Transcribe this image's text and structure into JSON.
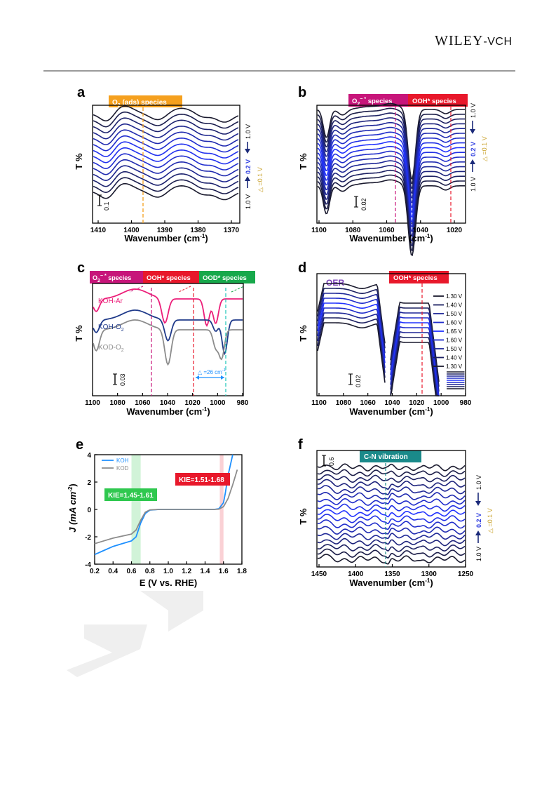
{
  "header": {
    "publisher_main": "WILEY",
    "publisher_suffix": "-VCH"
  },
  "panels": {
    "a": {
      "letter": "a",
      "ylabel": "T %",
      "xlabel": "Wavenumber (cm",
      "xlabel_sup": "-1",
      "xlabel_close": ")",
      "xticks": [
        "1410",
        "1400",
        "1390",
        "1380",
        "1370"
      ],
      "tag": {
        "text": "O",
        "sub": "2",
        "rest": " (ads) species",
        "color": "#f5a01e"
      },
      "scale_label": "0.1",
      "right": {
        "top": "1.0 V",
        "mid": "0.2 V",
        "bottom": "1.0 V",
        "step": "△ =0.1 V"
      }
    },
    "b": {
      "letter": "b",
      "ylabel": "T %",
      "xlabel": "Wavenumber (cm",
      "xlabel_sup": "-1",
      "xlabel_close": ")",
      "xticks": [
        "1100",
        "1080",
        "1060",
        "1040",
        "1020"
      ],
      "tag1": {
        "text": "O",
        "sub": "2",
        "sup": "− *",
        "rest": " species",
        "color": "#c7157a"
      },
      "tag2": {
        "text": "OOH* species",
        "color": "#e8182b"
      },
      "scale_label": "0.02",
      "right": {
        "top": "1.0 V",
        "mid": "0.2 V",
        "bottom": "1.0 V",
        "step": "△ =0.1 V"
      }
    },
    "c": {
      "letter": "c",
      "ylabel": "T %",
      "xlabel": "Wavenumber (cm",
      "xlabel_sup": "-1",
      "xlabel_close": ")",
      "xticks": [
        "1100",
        "1080",
        "1060",
        "1040",
        "1020",
        "1000",
        "980"
      ],
      "tag1": {
        "text": "O",
        "sub": "2",
        "sup": "− *",
        "rest": " species",
        "color": "#c7157a"
      },
      "tag2": {
        "text": "OOH* species",
        "color": "#e8182b"
      },
      "tag3": {
        "text": "OOD* species",
        "color": "#17a84b"
      },
      "label_ar": "KOH-Ar",
      "label_o2": "KOH-O",
      "label_o2_sub": "2",
      "label_kod": "KOD-O",
      "label_kod_sub": "2",
      "shift": "△ =26 cm",
      "shift_sup": "-1",
      "scale_label": "0.03"
    },
    "d": {
      "letter": "d",
      "ylabel": "T %",
      "xlabel": "Wavenumber (cm",
      "xlabel_sup": "-1",
      "xlabel_close": ")",
      "xticks": [
        "1100",
        "1080",
        "1060",
        "1040",
        "1020",
        "1000",
        "980"
      ],
      "oer": "OER",
      "tag": {
        "text": "OOH* species",
        "color": "#e8182b"
      },
      "legend": [
        "1.30 V",
        "1.40 V",
        "1.50 V",
        "1.60 V",
        "1.65 V",
        "1.60 V",
        "1.50 V",
        "1.40 V",
        "1.30 V"
      ],
      "scale_label": "0.02"
    },
    "e": {
      "letter": "e",
      "ylabel": "J (mA cm",
      "ylabel_sup": "-2",
      "ylabel_close": ")",
      "xlabel": "E (V vs. RHE)",
      "xticks": [
        "0.2",
        "0.4",
        "0.6",
        "0.8",
        "1.0",
        "1.2",
        "1.4",
        "1.6",
        "1.8"
      ],
      "yticks": [
        "4",
        "2",
        "0",
        "-2",
        "-4"
      ],
      "legend": [
        {
          "name": "KOH",
          "color": "#1e90ff"
        },
        {
          "name": "KOD",
          "color": "#8c8c8c"
        }
      ],
      "kie_low": {
        "text": "KIE=1.45-1.61",
        "color": "#2fc84f"
      },
      "kie_high": {
        "text": "KIE=1.51-1.68",
        "color": "#e8182b"
      }
    },
    "f": {
      "letter": "f",
      "ylabel": "T %",
      "xlabel": "Wavenumber (cm",
      "xlabel_sup": "-1",
      "xlabel_close": ")",
      "xticks": [
        "1450",
        "1400",
        "1350",
        "1300",
        "1250"
      ],
      "tag": {
        "text": "C-N vibration",
        "color": "#1a8a8a"
      },
      "scale_label": "0.6",
      "right": {
        "top": "1.0 V",
        "mid": "0.2 V",
        "bottom": "1.0 V",
        "step": "△ =0.1 V"
      }
    }
  },
  "chart_data": [
    {
      "type": "line",
      "panel": "a",
      "ylabel": "T %",
      "xlabel": "Wavenumber (cm-1)",
      "xlim": [
        1415,
        1370
      ],
      "x_reversed": true,
      "markers": [
        {
          "x": 1399,
          "label": "O2 (ads) species"
        }
      ],
      "series_count": 14,
      "note_scale": "0.1"
    },
    {
      "type": "line",
      "panel": "b",
      "ylabel": "T %",
      "xlabel": "Wavenumber (cm-1)",
      "xlim": [
        1100,
        1010
      ],
      "x_reversed": true,
      "markers": [
        {
          "x": 1047,
          "label": "O2−* species"
        },
        {
          "x": 1018,
          "label": "OOH* species"
        }
      ],
      "series_count": 17,
      "note_scale": "0.02"
    },
    {
      "type": "line",
      "panel": "c",
      "ylabel": "T %",
      "xlabel": "Wavenumber (cm-1)",
      "xlim": [
        1100,
        975
      ],
      "x_reversed": true,
      "markers": [
        {
          "x": 1053,
          "label": "O2−* species"
        },
        {
          "x": 1018,
          "label": "OOH* species"
        },
        {
          "x": 992,
          "label": "OOD* species"
        }
      ],
      "series": [
        {
          "name": "KOH-Ar",
          "color": "#ec1e79"
        },
        {
          "name": "KOH-O2",
          "color": "#1f3a8a"
        },
        {
          "name": "KOD-O2",
          "color": "#8c8c8c"
        }
      ],
      "annotation": "△ =26 cm-1"
    },
    {
      "type": "line",
      "panel": "d",
      "ylabel": "T %",
      "xlabel": "Wavenumber (cm-1)",
      "xlim": [
        1100,
        980
      ],
      "x_reversed": true,
      "markers": [
        {
          "x": 1017,
          "label": "OOH* species"
        }
      ],
      "series": [
        {
          "name": "1.30 V"
        },
        {
          "name": "1.40 V"
        },
        {
          "name": "1.50 V"
        },
        {
          "name": "1.60 V"
        },
        {
          "name": "1.65 V"
        },
        {
          "name": "1.60 V"
        },
        {
          "name": "1.50 V"
        },
        {
          "name": "1.40 V"
        },
        {
          "name": "1.30 V"
        }
      ]
    },
    {
      "type": "line",
      "panel": "e",
      "xlabel": "E (V vs. RHE)",
      "ylabel": "J (mA cm-2)",
      "xlim": [
        0.2,
        1.8
      ],
      "ylim": [
        -4,
        4
      ],
      "series": [
        {
          "name": "KOH",
          "x": [
            0.2,
            0.3,
            0.4,
            0.5,
            0.6,
            0.65,
            0.7,
            0.75,
            0.8,
            0.9,
            1.0,
            1.2,
            1.4,
            1.5,
            1.55,
            1.6,
            1.62,
            1.65,
            1.7
          ],
          "y": [
            -3.3,
            -3.0,
            -2.7,
            -2.5,
            -2.3,
            -2.0,
            -1.0,
            -0.3,
            -0.05,
            0,
            0,
            0,
            0,
            0,
            0.05,
            0.5,
            1.2,
            2.5,
            4.0
          ]
        },
        {
          "name": "KOD",
          "x": [
            0.2,
            0.3,
            0.4,
            0.5,
            0.6,
            0.65,
            0.7,
            0.75,
            0.8,
            0.9,
            1.0,
            1.2,
            1.4,
            1.5,
            1.55,
            1.6,
            1.65,
            1.7,
            1.75
          ],
          "y": [
            -2.5,
            -2.3,
            -2.1,
            -1.95,
            -1.8,
            -1.5,
            -0.8,
            -0.2,
            -0.03,
            0,
            0,
            0,
            0,
            0,
            0.02,
            0.2,
            0.8,
            1.8,
            2.9
          ]
        }
      ],
      "regions": [
        {
          "x": [
            0.6,
            0.7
          ],
          "label": "KIE=1.45-1.61"
        },
        {
          "x": [
            1.56,
            1.6
          ],
          "label": "KIE=1.51-1.68"
        }
      ]
    },
    {
      "type": "line",
      "panel": "f",
      "ylabel": "T %",
      "xlabel": "Wavenumber (cm-1)",
      "xlim": [
        1450,
        1250
      ],
      "x_reversed": true,
      "markers": [
        {
          "x": 1356,
          "label": "C-N vibration"
        }
      ],
      "series_count": 17,
      "note_scale": "0.6"
    }
  ]
}
